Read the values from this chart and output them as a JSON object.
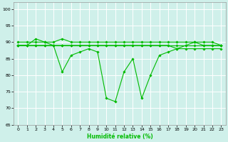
{
  "xlabel": "Humidité relative (%)",
  "background_color": "#cff0ea",
  "grid_color": "#ffffff",
  "line_color": "#00bb00",
  "marker": "D",
  "marker_size": 1.8,
  "line_width": 0.8,
  "xlim": [
    -0.5,
    23.5
  ],
  "ylim": [
    65,
    102
  ],
  "yticks": [
    65,
    70,
    75,
    80,
    85,
    90,
    95,
    100
  ],
  "xticks": [
    0,
    1,
    2,
    3,
    4,
    5,
    6,
    7,
    8,
    9,
    10,
    11,
    12,
    13,
    14,
    15,
    16,
    17,
    18,
    19,
    20,
    21,
    22,
    23
  ],
  "series": [
    [
      89,
      89,
      89,
      89,
      89,
      89,
      89,
      89,
      89,
      89,
      89,
      89,
      89,
      89,
      89,
      89,
      89,
      89,
      89,
      89,
      89,
      89,
      89,
      89
    ],
    [
      90,
      90,
      90,
      90,
      90,
      91,
      90,
      90,
      90,
      90,
      90,
      90,
      90,
      90,
      90,
      90,
      90,
      90,
      90,
      90,
      90,
      90,
      90,
      89
    ],
    [
      89,
      89,
      89,
      89,
      89,
      89,
      89,
      89,
      89,
      89,
      89,
      89,
      89,
      89,
      89,
      89,
      89,
      89,
      88,
      88,
      88,
      88,
      88,
      88
    ],
    [
      89,
      89,
      91,
      90,
      89,
      81,
      86,
      87,
      88,
      87,
      73,
      72,
      81,
      85,
      73,
      80,
      86,
      87,
      88,
      89,
      90,
      89,
      89,
      89
    ]
  ]
}
